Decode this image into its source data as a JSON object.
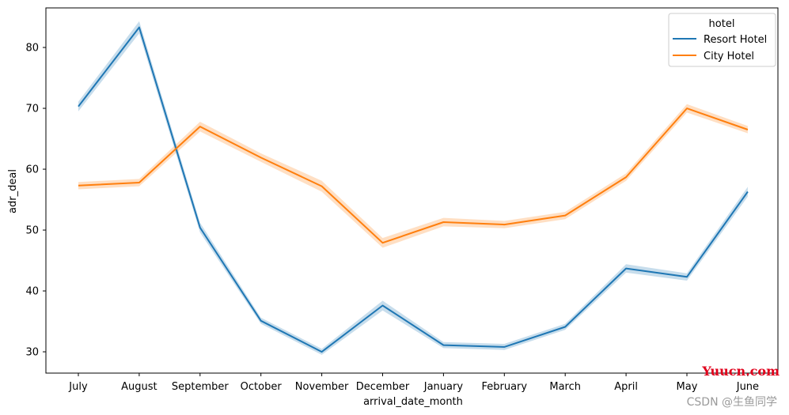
{
  "chart_data": {
    "type": "line",
    "xlabel": "arrival_date_month",
    "ylabel": "adr_deal",
    "categories": [
      "July",
      "August",
      "September",
      "October",
      "November",
      "December",
      "January",
      "February",
      "March",
      "April",
      "May",
      "June"
    ],
    "ylim": [
      26.5,
      86.5
    ],
    "yticks": [
      30,
      40,
      50,
      60,
      70,
      80
    ],
    "grid": false,
    "legend": {
      "title": "hotel",
      "placement": "top-right"
    },
    "series": [
      {
        "name": "Resort Hotel",
        "color": "#1f77b4",
        "values": [
          70.3,
          83.3,
          50.4,
          35.1,
          30.0,
          37.6,
          31.1,
          30.8,
          34.1,
          43.7,
          42.3,
          56.3
        ],
        "ci_half": [
          0.8,
          1.0,
          0.8,
          0.5,
          0.5,
          0.8,
          0.5,
          0.5,
          0.5,
          0.7,
          0.6,
          0.8
        ]
      },
      {
        "name": "City Hotel",
        "color": "#ff7f0e",
        "values": [
          57.3,
          57.8,
          67.0,
          61.9,
          57.2,
          47.9,
          51.3,
          50.9,
          52.4,
          58.7,
          70.0,
          66.5
        ],
        "ci_half": [
          0.6,
          0.6,
          0.8,
          0.7,
          0.9,
          0.8,
          0.7,
          0.6,
          0.6,
          0.6,
          0.7,
          0.6
        ]
      }
    ]
  },
  "watermarks": {
    "site": "Yuucn.com",
    "author": "CSDN @生鱼同学"
  }
}
